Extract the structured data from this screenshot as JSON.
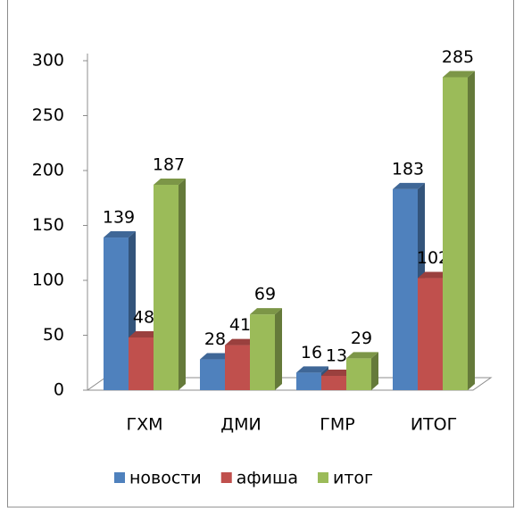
{
  "chart_data": {
    "type": "bar3d",
    "categories": [
      "ГХМ",
      "ДМИ",
      "ГМР",
      "ИТОГ"
    ],
    "series": [
      {
        "name": "новости",
        "color": "#4f81bd",
        "values": [
          139,
          28,
          16,
          183
        ]
      },
      {
        "name": "афиша",
        "color": "#c0504d",
        "values": [
          48,
          41,
          13,
          102
        ]
      },
      {
        "name": "итог",
        "color": "#9bbb59",
        "values": [
          187,
          69,
          29,
          285
        ]
      }
    ],
    "ylim": [
      0,
      300
    ],
    "yticks": [
      0,
      50,
      100,
      150,
      200,
      250,
      300
    ],
    "legend": "bottom",
    "grid": false
  }
}
